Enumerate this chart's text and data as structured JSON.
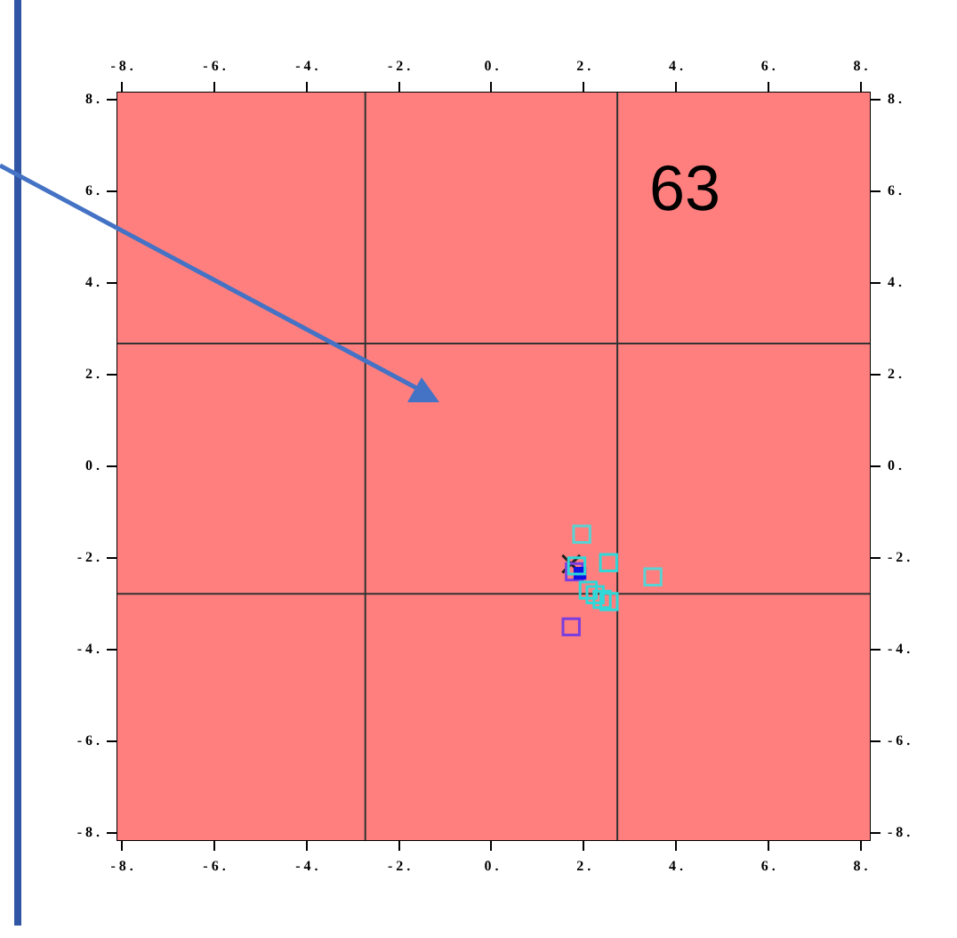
{
  "chart_data": {
    "type": "scatter",
    "annotations": [
      "63"
    ],
    "marker": "square",
    "legend": false,
    "xlim": [
      -8.1,
      8.2
    ],
    "ylim": [
      -8.15,
      8.15
    ],
    "x2lim": [
      -8.1,
      8.2
    ],
    "y2lim": [
      -8.15,
      8.15
    ],
    "xticks": [
      {
        "value": -8,
        "label": "- 8 ."
      },
      {
        "value": -6,
        "label": "- 6 ."
      },
      {
        "value": -4,
        "label": "- 4 ."
      },
      {
        "value": -2,
        "label": "- 2 ."
      },
      {
        "value": 0,
        "label": "0 ."
      },
      {
        "value": 2,
        "label": "2 ."
      },
      {
        "value": 4,
        "label": "4 ."
      },
      {
        "value": 6,
        "label": "6 ."
      },
      {
        "value": 8,
        "label": "8 ."
      }
    ],
    "x2ticks": [
      {
        "value": -8,
        "label": "- 8 ."
      },
      {
        "value": -6,
        "label": "- 6 ."
      },
      {
        "value": -4,
        "label": "- 4 ."
      },
      {
        "value": -2,
        "label": "- 2 ."
      },
      {
        "value": 0,
        "label": "0 ."
      },
      {
        "value": 2,
        "label": "2 ."
      },
      {
        "value": 4,
        "label": "4 ."
      },
      {
        "value": 6,
        "label": "6 ."
      },
      {
        "value": 8,
        "label": "8 ."
      }
    ],
    "yticks": [
      {
        "value": -8,
        "label": "- 8 ."
      },
      {
        "value": -6,
        "label": "- 6 ."
      },
      {
        "value": -4,
        "label": "- 4 ."
      },
      {
        "value": -2,
        "label": "- 2 ."
      },
      {
        "value": 0,
        "label": "0 ."
      },
      {
        "value": 2,
        "label": "2 ."
      },
      {
        "value": 4,
        "label": "4 ."
      },
      {
        "value": 6,
        "label": "6 ."
      },
      {
        "value": 8,
        "label": "8 ."
      }
    ],
    "y2ticks": [
      {
        "value": -8,
        "label": "- 8 ."
      },
      {
        "value": -6,
        "label": "- 6 ."
      },
      {
        "value": -4,
        "label": "- 4 ."
      },
      {
        "value": -2,
        "label": "- 2 ."
      },
      {
        "value": 0,
        "label": "0 ."
      },
      {
        "value": 2,
        "label": "2 ."
      },
      {
        "value": 4,
        "label": "4 ."
      },
      {
        "value": 6,
        "label": "6 ."
      },
      {
        "value": 8,
        "label": "8 ."
      }
    ],
    "ref_lines": [
      {
        "axis": "x",
        "value": -2.73,
        "color": "#333333"
      },
      {
        "axis": "x",
        "value": 2.73,
        "color": "#333333"
      },
      {
        "axis": "y",
        "value": 2.68,
        "color": "#333333"
      },
      {
        "axis": "y",
        "value": -2.78,
        "color": "#333333"
      }
    ],
    "series": [
      {
        "color": "#5ad2d2",
        "line_style": "dashed",
        "x": [
          1.96,
          3.5
        ],
        "values": [
          -1.48,
          -2.41
        ]
      },
      {
        "color": "#30d8d8",
        "line_style": "solid",
        "x": [
          1.85,
          2.54,
          2.1,
          2.25,
          2.4,
          2.55
        ],
        "values": [
          -2.17,
          -2.1,
          -2.7,
          -2.8,
          -2.9,
          -2.95
        ]
      },
      {
        "color": "#1010e0",
        "line_style": "solid",
        "x": [
          1.92
        ],
        "values": [
          -2.33
        ]
      },
      {
        "color": "#7a3ee0",
        "line_style": "dashed",
        "x": [
          1.73,
          1.8
        ],
        "values": [
          -3.5,
          -2.3
        ]
      },
      {
        "color": "#222222",
        "marker": "cross",
        "line_style": "solid",
        "x": [
          1.73
        ],
        "values": [
          -2.13
        ]
      }
    ]
  }
}
